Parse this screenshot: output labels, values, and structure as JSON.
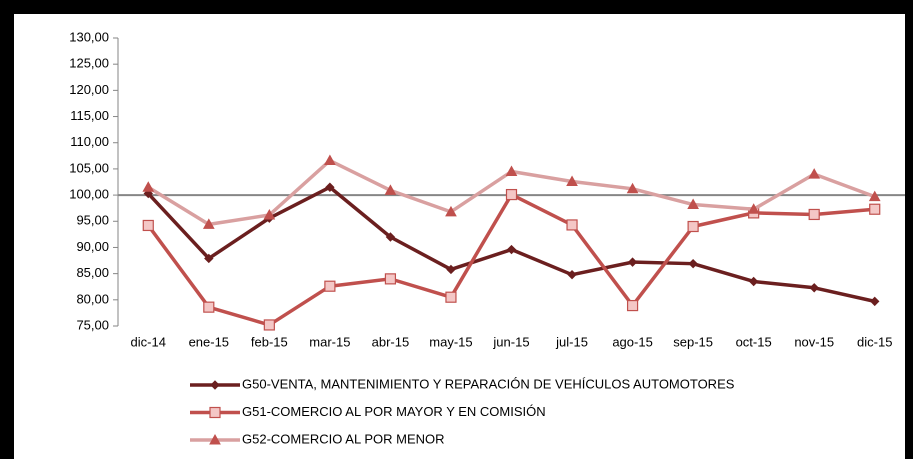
{
  "chart_data": {
    "type": "line",
    "categories": [
      "dic-14",
      "ene-15",
      "feb-15",
      "mar-15",
      "abr-15",
      "may-15",
      "jun-15",
      "jul-15",
      "ago-15",
      "sep-15",
      "oct-15",
      "nov-15",
      "dic-15"
    ],
    "series": [
      {
        "name": "G50-VENTA, MANTENIMIENTO Y REPARACIÓN DE VEHÍCULOS AUTOMOTORES",
        "color": "#6b1f1f",
        "marker": "diamond",
        "values": [
          100.3,
          87.9,
          95.6,
          101.5,
          92.0,
          85.8,
          89.6,
          84.8,
          87.2,
          86.9,
          83.5,
          82.3,
          79.7
        ]
      },
      {
        "name": "G51-COMERCIO AL POR MAYOR Y EN COMISIÓN",
        "color": "#c0504d",
        "marker": "square",
        "values": [
          94.2,
          78.6,
          75.2,
          82.6,
          84.0,
          80.5,
          100.1,
          94.3,
          78.9,
          94.0,
          96.6,
          96.3,
          97.3
        ]
      },
      {
        "name": "G52-COMERCIO AL POR MENOR",
        "color": "#d9a0a0",
        "marker": "triangle",
        "values": [
          101.5,
          94.4,
          96.2,
          106.6,
          100.9,
          96.8,
          104.5,
          102.6,
          101.2,
          98.2,
          97.3,
          104.0,
          99.7
        ]
      }
    ],
    "ylim": [
      75,
      130
    ],
    "yticks": [
      {
        "value": 75,
        "label": "75,00"
      },
      {
        "value": 80,
        "label": "80,00"
      },
      {
        "value": 85,
        "label": "85,00"
      },
      {
        "value": 90,
        "label": "90,00"
      },
      {
        "value": 95,
        "label": "95,00"
      },
      {
        "value": 100,
        "label": "100,00"
      },
      {
        "value": 105,
        "label": "105,00"
      },
      {
        "value": 110,
        "label": "110,00"
      },
      {
        "value": 115,
        "label": "115,00"
      },
      {
        "value": 120,
        "label": "120,00"
      },
      {
        "value": 125,
        "label": "125,00"
      },
      {
        "value": 130,
        "label": "130,00"
      }
    ],
    "x_axis_crosses": 100,
    "grid": false,
    "legend": "bottom"
  }
}
